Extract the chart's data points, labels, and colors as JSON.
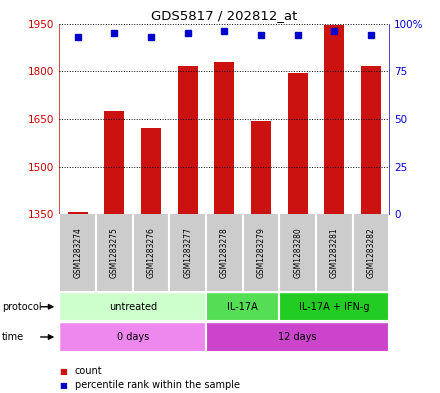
{
  "title": "GDS5817 / 202812_at",
  "samples": [
    "GSM1283274",
    "GSM1283275",
    "GSM1283276",
    "GSM1283277",
    "GSM1283278",
    "GSM1283279",
    "GSM1283280",
    "GSM1283281",
    "GSM1283282"
  ],
  "counts": [
    1358,
    1675,
    1622,
    1815,
    1830,
    1642,
    1795,
    1945,
    1815
  ],
  "percentile_ranks": [
    93,
    95,
    93,
    95,
    96,
    94,
    94,
    96,
    94
  ],
  "ylim_left": [
    1350,
    1950
  ],
  "ylim_right": [
    0,
    100
  ],
  "yticks_left": [
    1350,
    1500,
    1650,
    1800,
    1950
  ],
  "yticks_right": [
    0,
    25,
    50,
    75,
    100
  ],
  "ytick_labels_left": [
    "1350",
    "1500",
    "1650",
    "1800",
    "1950"
  ],
  "ytick_labels_right": [
    "0",
    "25",
    "50",
    "75",
    "100%"
  ],
  "bar_color": "#cc1111",
  "dot_color": "#0000cc",
  "bar_width": 0.55,
  "protocol_groups": [
    {
      "label": "untreated",
      "start": 0,
      "end": 4,
      "color": "#ccffcc"
    },
    {
      "label": "IL-17A",
      "start": 4,
      "end": 6,
      "color": "#55dd55"
    },
    {
      "label": "IL-17A + IFN-g",
      "start": 6,
      "end": 9,
      "color": "#22cc22"
    }
  ],
  "time_groups": [
    {
      "label": "0 days",
      "start": 0,
      "end": 4,
      "color": "#ee88ee"
    },
    {
      "label": "12 days",
      "start": 4,
      "end": 9,
      "color": "#cc44cc"
    }
  ],
  "bg_color": "#ffffff",
  "grid_color": "#000000",
  "axis_label_color_left": "#cc0000",
  "axis_label_color_right": "#0000cc",
  "sample_bg_color": "#cccccc",
  "sample_divider_color": "#ffffff"
}
